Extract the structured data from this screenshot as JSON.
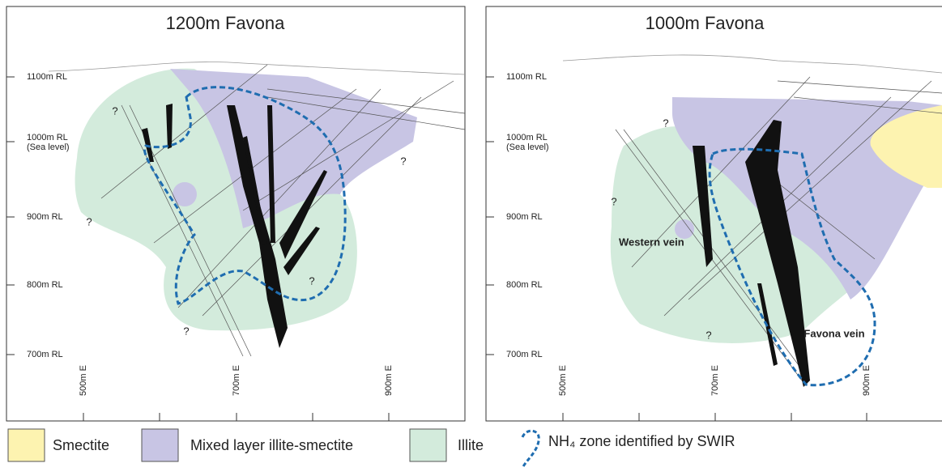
{
  "panels": [
    {
      "title": "1200m Favona",
      "rl_labels": [
        "1100m RL",
        "1000m RL",
        "900m RL",
        "800m RL",
        "700m RL"
      ],
      "sea_level": "(Sea level)",
      "e_labels": [
        "500m E",
        "700m E",
        "900m E"
      ],
      "question_marks": [
        "?",
        "?",
        "?",
        "?",
        "?"
      ],
      "annotations": []
    },
    {
      "title": "1000m Favona",
      "rl_labels": [
        "1100m RL",
        "1000m RL",
        "900m RL",
        "800m RL",
        "700m RL"
      ],
      "sea_level": "(Sea level)",
      "e_labels": [
        "500m E",
        "700m E",
        "900m E"
      ],
      "question_marks": [
        "?",
        "?",
        "?"
      ],
      "annotations": [
        "Western vein",
        "Favona vein"
      ]
    }
  ],
  "legend": [
    {
      "label": "Smectite",
      "color": "#fdf3b0"
    },
    {
      "label": "Mixed layer illite-smectite",
      "color": "#c8c5e4"
    },
    {
      "label": "Illite",
      "color": "#d3ebdc"
    },
    {
      "label": "NH₄ zone identified by SWIR",
      "color": "#1f6db0"
    }
  ]
}
